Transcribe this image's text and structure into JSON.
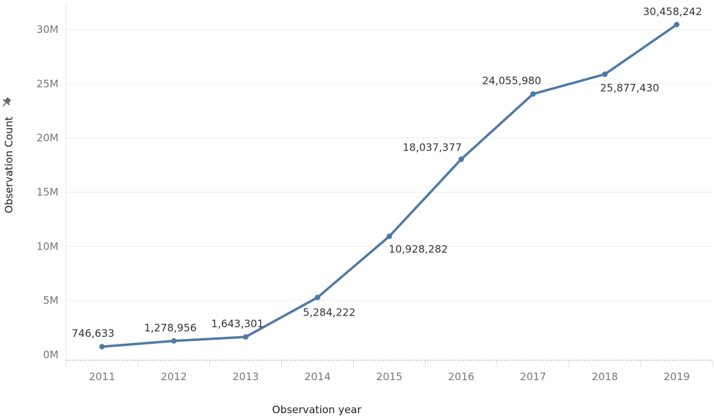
{
  "chart_data": {
    "type": "line",
    "categories": [
      "2011",
      "2012",
      "2013",
      "2014",
      "2015",
      "2016",
      "2017",
      "2018",
      "2019"
    ],
    "values": [
      746633,
      1278956,
      1643301,
      5284222,
      10928282,
      18037377,
      24055980,
      25877430,
      30458242
    ],
    "data_labels": [
      "746,633",
      "1,278,956",
      "1,643,301",
      "5,284,222",
      "10,928,282",
      "18,037,377",
      "24,055,980",
      "25,877,430",
      "30,458,242"
    ],
    "xlabel": "Observation year",
    "ylabel": "Observation Count",
    "ylim": [
      0,
      30000000
    ],
    "y_ticks": [
      {
        "value": 0,
        "label": "0M"
      },
      {
        "value": 5000000,
        "label": "5M"
      },
      {
        "value": 10000000,
        "label": "10M"
      },
      {
        "value": 15000000,
        "label": "15M"
      },
      {
        "value": 20000000,
        "label": "20M"
      },
      {
        "value": 25000000,
        "label": "25M"
      },
      {
        "value": 30000000,
        "label": "30M"
      }
    ],
    "grid": true,
    "line_color": "#4e79a7",
    "ylabel_icon": "pin-icon"
  }
}
